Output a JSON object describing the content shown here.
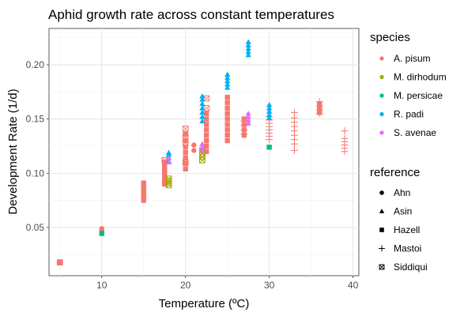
{
  "chart_data": {
    "type": "scatter",
    "title": "Aphid growth rate across constant temperatures",
    "xlabel": "Temperature (ºC)",
    "ylabel": "Development Rate (1/d)",
    "xlim": [
      3.7,
      40.7
    ],
    "ylim": [
      0.0055,
      0.2335
    ],
    "xticks": [
      10,
      20,
      30,
      40
    ],
    "xtick_labels": [
      "10",
      "20",
      "30",
      "40"
    ],
    "yticks": [
      0.05,
      0.1,
      0.15,
      0.2
    ],
    "ytick_labels": [
      "0.05",
      "0.10",
      "0.15",
      "0.20"
    ],
    "grid": true,
    "legend_color_title": "species",
    "legend_shape_title": "reference",
    "species": [
      {
        "name": "A. pisum",
        "color": "#F8766D"
      },
      {
        "name": "M. dirhodum",
        "color": "#A3A500"
      },
      {
        "name": "M. persicae",
        "color": "#00BF7D"
      },
      {
        "name": "R. padi",
        "color": "#00B0F6"
      },
      {
        "name": "S. avenae",
        "color": "#E76BF3"
      }
    ],
    "references": [
      {
        "name": "Ahn",
        "shape": "circle"
      },
      {
        "name": "Asin",
        "shape": "triangle"
      },
      {
        "name": "Hazell",
        "shape": "square"
      },
      {
        "name": "Mastoi",
        "shape": "plus"
      },
      {
        "name": "Siddiqui",
        "shape": "boxx"
      }
    ],
    "series": [
      {
        "species": "A. pisum",
        "reference": "Hazell",
        "x": 5,
        "y": [
          0.0175,
          0.018
        ]
      },
      {
        "species": "A. pisum",
        "reference": "Siddiqui",
        "x": 5,
        "y": [
          0.0178
        ]
      },
      {
        "species": "A. pisum",
        "reference": "Ahn",
        "x": 10,
        "y": [
          0.047,
          0.049
        ]
      },
      {
        "species": "A. pisum",
        "reference": "Hazell",
        "x": 15,
        "y": [
          0.075,
          0.079,
          0.083,
          0.087,
          0.091
        ]
      },
      {
        "species": "A. pisum",
        "reference": "Hazell",
        "x": 17.5,
        "y": [
          0.09,
          0.094,
          0.098,
          0.102,
          0.106,
          0.11
        ]
      },
      {
        "species": "A. pisum",
        "reference": "Siddiqui",
        "x": 17.5,
        "y": [
          0.112
        ]
      },
      {
        "species": "A. pisum",
        "reference": "Hazell",
        "x": 20,
        "y": [
          0.104,
          0.109,
          0.114,
          0.119,
          0.124,
          0.13,
          0.136
        ]
      },
      {
        "species": "A. pisum",
        "reference": "Siddiqui",
        "x": 20,
        "y": [
          0.11,
          0.128,
          0.134,
          0.141
        ]
      },
      {
        "species": "A. pisum",
        "reference": "Ahn",
        "x": 21,
        "y": [
          0.121,
          0.126
        ]
      },
      {
        "species": "A. pisum",
        "reference": "Hazell",
        "x": 22.5,
        "y": [
          0.12,
          0.125,
          0.13,
          0.135,
          0.14,
          0.145,
          0.15,
          0.155
        ]
      },
      {
        "species": "A. pisum",
        "reference": "Siddiqui",
        "x": 22.5,
        "y": [
          0.16,
          0.169
        ]
      },
      {
        "species": "A. pisum",
        "reference": "Hazell",
        "x": 25,
        "y": [
          0.13,
          0.135,
          0.14,
          0.145,
          0.15,
          0.155,
          0.16,
          0.165,
          0.17
        ]
      },
      {
        "species": "A. pisum",
        "reference": "Hazell",
        "x": 27,
        "y": [
          0.135,
          0.14,
          0.145,
          0.15
        ]
      },
      {
        "species": "A. pisum",
        "reference": "Mastoi",
        "x": 27,
        "y": [
          0.136,
          0.14,
          0.144,
          0.148
        ]
      },
      {
        "species": "A. pisum",
        "reference": "Mastoi",
        "x": 30,
        "y": [
          0.131,
          0.134,
          0.137,
          0.14,
          0.143,
          0.146,
          0.149,
          0.152
        ]
      },
      {
        "species": "A. pisum",
        "reference": "Mastoi",
        "x": 33,
        "y": [
          0.121,
          0.127,
          0.131,
          0.135,
          0.139,
          0.143,
          0.147,
          0.151,
          0.156
        ]
      },
      {
        "species": "A. pisum",
        "reference": "Hazell",
        "x": 36,
        "y": [
          0.156,
          0.16,
          0.164
        ]
      },
      {
        "species": "A. pisum",
        "reference": "Mastoi",
        "x": 36,
        "y": [
          0.155,
          0.158,
          0.162,
          0.166
        ]
      },
      {
        "species": "A. pisum",
        "reference": "Mastoi",
        "x": 39,
        "y": [
          0.12,
          0.123,
          0.126,
          0.129,
          0.132,
          0.139
        ]
      },
      {
        "species": "M. persicae",
        "reference": "Hazell",
        "x": 10,
        "y": [
          0.0445
        ]
      },
      {
        "species": "M. persicae",
        "reference": "Hazell",
        "x": 30,
        "y": [
          0.124
        ]
      },
      {
        "species": "M. dirhodum",
        "reference": "Siddiqui",
        "x": 18,
        "y": [
          0.089,
          0.091,
          0.093,
          0.095
        ]
      },
      {
        "species": "M. dirhodum",
        "reference": "Siddiqui",
        "x": 22,
        "y": [
          0.112,
          0.115,
          0.118,
          0.121
        ]
      },
      {
        "species": "M. dirhodum",
        "reference": "Asin",
        "x": 22,
        "y": [
          0.123
        ]
      },
      {
        "species": "R. padi",
        "reference": "Asin",
        "x": 18,
        "y": [
          0.111,
          0.114,
          0.117,
          0.119
        ]
      },
      {
        "species": "R. padi",
        "reference": "Asin",
        "x": 22,
        "y": [
          0.148,
          0.152,
          0.156,
          0.16,
          0.164,
          0.168,
          0.171
        ]
      },
      {
        "species": "R. padi",
        "reference": "Asin",
        "x": 25,
        "y": [
          0.179,
          0.182,
          0.185,
          0.188,
          0.191
        ]
      },
      {
        "species": "R. padi",
        "reference": "Asin",
        "x": 27.5,
        "y": [
          0.209,
          0.212,
          0.215,
          0.218,
          0.221
        ]
      },
      {
        "species": "R. padi",
        "reference": "Asin",
        "x": 30,
        "y": [
          0.151,
          0.154,
          0.157,
          0.16,
          0.163
        ]
      },
      {
        "species": "S. avenae",
        "reference": "Asin",
        "x": 18,
        "y": [
          0.11,
          0.114
        ]
      },
      {
        "species": "S. avenae",
        "reference": "Asin",
        "x": 22,
        "y": [
          0.121,
          0.124,
          0.127
        ]
      },
      {
        "species": "S. avenae",
        "reference": "Asin",
        "x": 27.5,
        "y": [
          0.146,
          0.149,
          0.152,
          0.155
        ]
      }
    ]
  }
}
